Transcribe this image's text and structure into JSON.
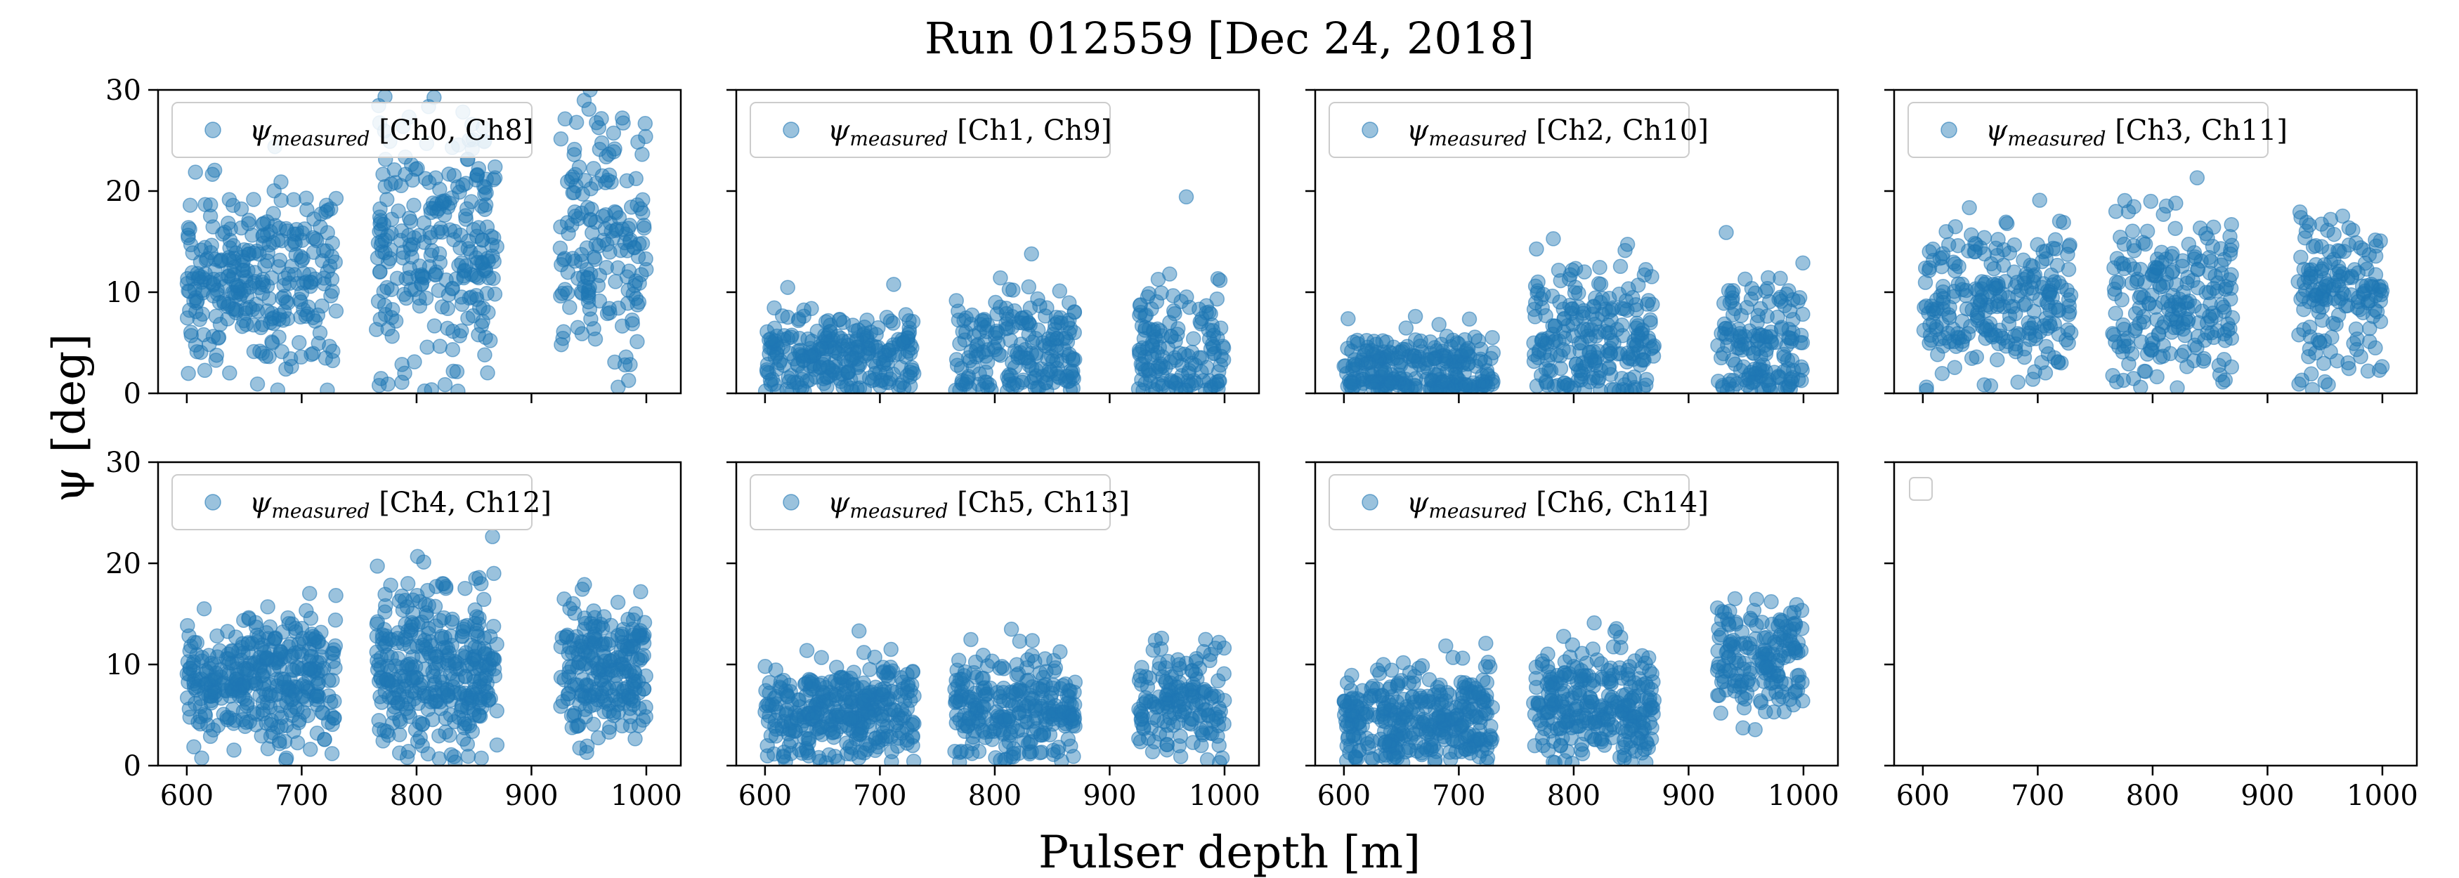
{
  "chart_data": {
    "type": "scatter",
    "title": "Run 012559 [Dec 24, 2018]",
    "xlabel": "Pulser depth [m]",
    "ylabel": "ψ [deg]",
    "xlim": [
      575,
      1030
    ],
    "ylim": [
      0,
      30
    ],
    "xticks": [
      600,
      700,
      800,
      900,
      1000
    ],
    "yticks": [
      0,
      10,
      20,
      30
    ],
    "point_color": "#1f77b4",
    "legend_position": "upper-left",
    "grid": false,
    "panels": [
      {
        "series_name": "ψmeasured [Ch0, Ch8]",
        "legend_symbol": "ψ",
        "legend_subscript": "measured",
        "legend_channels": "[Ch0, Ch8]",
        "clusters": [
          {
            "x": [
              600,
              730
            ],
            "y_mean": 11.5,
            "y_sd": 4.6,
            "n": 300
          },
          {
            "x": [
              765,
              870
            ],
            "y_mean": 14.5,
            "y_sd": 6.5,
            "n": 260
          },
          {
            "x": [
              925,
              1000
            ],
            "y_mean": 15.0,
            "y_sd": 7.0,
            "n": 170
          }
        ]
      },
      {
        "series_name": "ψmeasured [Ch1, Ch9]",
        "legend_symbol": "ψ",
        "legend_subscript": "measured",
        "legend_channels": "[Ch1, Ch9]",
        "clusters": [
          {
            "x": [
              600,
              730
            ],
            "y_mean": 3.8,
            "y_sd": 2.6,
            "n": 260
          },
          {
            "x": [
              765,
              870
            ],
            "y_mean": 4.2,
            "y_sd": 3.0,
            "n": 200
          },
          {
            "x": [
              925,
              1000
            ],
            "y_mean": 4.2,
            "y_sd": 3.5,
            "n": 150
          }
        ]
      },
      {
        "series_name": "ψmeasured [Ch2, Ch10]",
        "legend_symbol": "ψ",
        "legend_subscript": "measured",
        "legend_channels": "[Ch2, Ch10]",
        "clusters": [
          {
            "x": [
              600,
              730
            ],
            "y_mean": 2.2,
            "y_sd": 2.2,
            "n": 260
          },
          {
            "x": [
              765,
              870
            ],
            "y_mean": 5.5,
            "y_sd": 3.6,
            "n": 230
          },
          {
            "x": [
              925,
              1000
            ],
            "y_mean": 4.5,
            "y_sd": 3.6,
            "n": 160
          }
        ]
      },
      {
        "series_name": "ψmeasured [Ch3, Ch11]",
        "legend_symbol": "ψ",
        "legend_subscript": "measured",
        "legend_channels": "[Ch3, Ch11]",
        "clusters": [
          {
            "x": [
              600,
              730
            ],
            "y_mean": 9.0,
            "y_sd": 3.8,
            "n": 260
          },
          {
            "x": [
              765,
              870
            ],
            "y_mean": 9.0,
            "y_sd": 4.2,
            "n": 220
          },
          {
            "x": [
              925,
              1000
            ],
            "y_mean": 9.5,
            "y_sd": 4.0,
            "n": 160
          }
        ]
      },
      {
        "series_name": "ψmeasured [Ch4, Ch12]",
        "legend_symbol": "ψ",
        "legend_subscript": "measured",
        "legend_channels": "[Ch4, Ch12]",
        "clusters": [
          {
            "x": [
              600,
              730
            ],
            "y_mean": 8.5,
            "y_sd": 3.3,
            "n": 360
          },
          {
            "x": [
              765,
              870
            ],
            "y_mean": 9.5,
            "y_sd": 4.2,
            "n": 340
          },
          {
            "x": [
              925,
              1000
            ],
            "y_mean": 9.5,
            "y_sd": 3.6,
            "n": 230
          }
        ]
      },
      {
        "series_name": "ψmeasured [Ch5, Ch13]",
        "legend_symbol": "ψ",
        "legend_subscript": "measured",
        "legend_channels": "[Ch5, Ch13]",
        "clusters": [
          {
            "x": [
              600,
              730
            ],
            "y_mean": 5.5,
            "y_sd": 2.4,
            "n": 340
          },
          {
            "x": [
              765,
              870
            ],
            "y_mean": 5.5,
            "y_sd": 2.6,
            "n": 260
          },
          {
            "x": [
              925,
              1000
            ],
            "y_mean": 6.0,
            "y_sd": 2.7,
            "n": 160
          }
        ]
      },
      {
        "series_name": "ψmeasured [Ch6, Ch14]",
        "legend_symbol": "ψ",
        "legend_subscript": "measured",
        "legend_channels": "[Ch6, Ch14]",
        "clusters": [
          {
            "x": [
              600,
              730
            ],
            "y_mean": 4.8,
            "y_sd": 2.5,
            "n": 340
          },
          {
            "x": [
              765,
              870
            ],
            "y_mean": 6.0,
            "y_sd": 2.8,
            "n": 280
          },
          {
            "x": [
              925,
              1000
            ],
            "y_mean": 10.5,
            "y_sd": 3.0,
            "n": 170
          }
        ]
      },
      {
        "series_name": "",
        "legend_symbol": "",
        "legend_subscript": "",
        "legend_channels": "",
        "empty_legend": true,
        "clusters": []
      }
    ]
  }
}
